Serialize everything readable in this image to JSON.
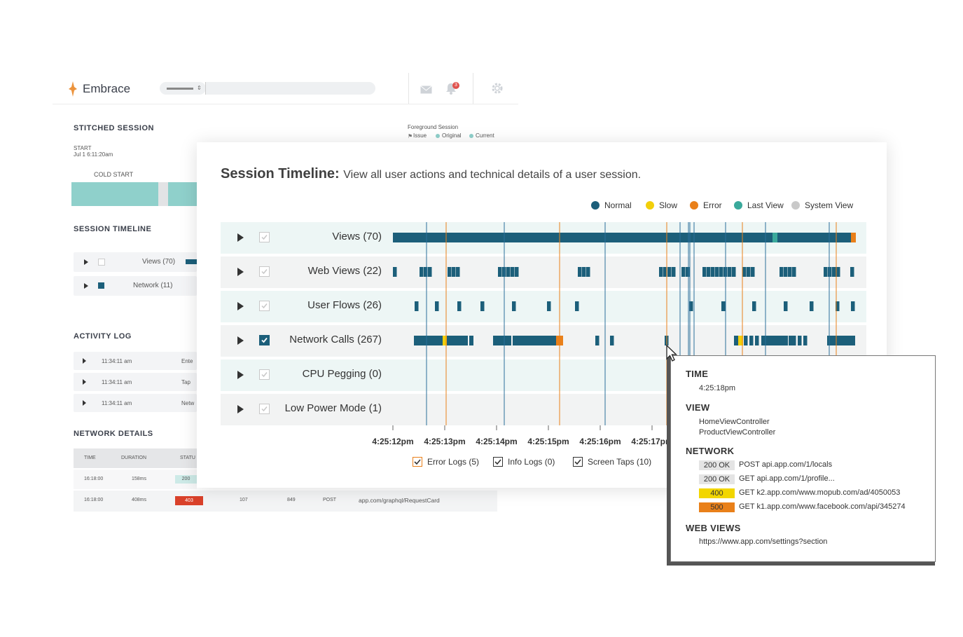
{
  "background_app": {
    "logo_text": "Embrace",
    "notification_count": "3",
    "stitched_session": {
      "heading": "STITCHED SESSION",
      "start_label": "START",
      "start_value": "Jul 1 6:11:20am",
      "cold_start_label": "COLD START",
      "legend_title": "Foreground Session",
      "legend_items": [
        "Issue",
        "Original",
        "Current"
      ]
    },
    "session_timeline": {
      "heading": "SESSION TIMELINE",
      "rows": [
        "Views (70)",
        "Network (11)"
      ]
    },
    "activity_log": {
      "heading": "ACTIVITY LOG",
      "rows": [
        {
          "time": "11:34:11 am",
          "action": "Ente"
        },
        {
          "time": "11:34:11 am",
          "action": "Tap"
        },
        {
          "time": "11:34:11 am",
          "action": "Netw"
        }
      ]
    },
    "network_details": {
      "heading": "NETWORK DETAILS",
      "columns": [
        "TIME",
        "DURATION",
        "STATU"
      ],
      "rows": [
        {
          "time": "16:18:00",
          "duration": "158ms",
          "status": "200",
          "c4": "",
          "c5": "",
          "method": "",
          "url": ""
        },
        {
          "time": "16:18:00",
          "duration": "408ms",
          "status": "403",
          "c4": "107",
          "c5": "849",
          "method": "POST",
          "url": "app.com/graphql/RequestCard"
        }
      ]
    }
  },
  "panel": {
    "title_bold": "Session Timeline:",
    "title_sub": "View all user actions and technical details of a user session.",
    "legend": [
      {
        "label": "Normal",
        "color": "#1c5f7a"
      },
      {
        "label": "Slow",
        "color": "#f2cf0a"
      },
      {
        "label": "Error",
        "color": "#e9801a"
      },
      {
        "label": "Last View",
        "color": "#3aa99b"
      },
      {
        "label": "System View",
        "color": "#c9c9c9"
      }
    ],
    "rows": [
      {
        "label": "Views (70)",
        "checked": false
      },
      {
        "label": "Web Views (22)",
        "checked": false
      },
      {
        "label": "User Flows (26)",
        "checked": false
      },
      {
        "label": "Network Calls (267)",
        "checked": true
      },
      {
        "label": "CPU Pegging (0)",
        "checked": false
      },
      {
        "label": "Low Power Mode (1)",
        "checked": false
      }
    ],
    "time_ticks": [
      "4:25:12pm",
      "4:25:13pm",
      "4:25:14pm",
      "4:25:15pm",
      "4:25:16pm",
      "4:25:17pm",
      "4:"
    ],
    "footer": [
      {
        "label": "Error Logs (5)",
        "checked": true,
        "color": "#e9801a"
      },
      {
        "label": "Info Logs (0)",
        "checked": true,
        "color": "#333333"
      },
      {
        "label": "Screen Taps (10)",
        "checked": true,
        "color": "#333333"
      }
    ]
  },
  "tooltip": {
    "time_heading": "TIME",
    "time_value": "4:25:18pm",
    "view_heading": "VIEW",
    "views": [
      "HomeViewController",
      "ProductViewController"
    ],
    "network_heading": "NETWORK",
    "network": [
      {
        "status": "200 OK",
        "color": "#e4e4e4",
        "line": "POST api.app.com/1/locals"
      },
      {
        "status": "200 OK",
        "color": "#e4e4e4",
        "line": "GET api.app.com/1/profile..."
      },
      {
        "status": "400",
        "color": "#f2d600",
        "line": "GET k2.app.com/www.mopub.com/ad/4050053"
      },
      {
        "status": "500",
        "color": "#e9801a",
        "line": "GET k1.app.com/www.facebook.com/api/345274"
      }
    ],
    "web_views_heading": "WEB VIEWS",
    "web_views": [
      "https://www.app.com/settings?section"
    ]
  }
}
